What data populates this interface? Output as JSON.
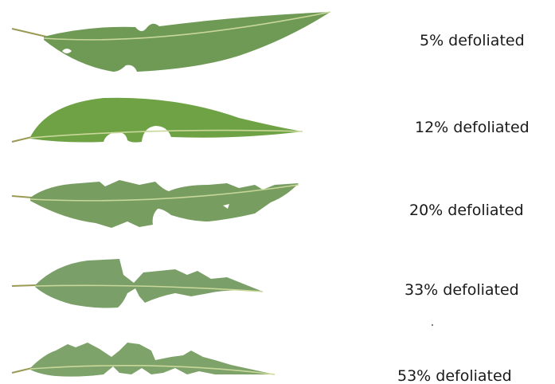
{
  "labels": [
    "5% defoliated",
    "12% defoliated",
    "20% defoliated",
    "33% defoliated",
    "53% defoliated"
  ]
}
